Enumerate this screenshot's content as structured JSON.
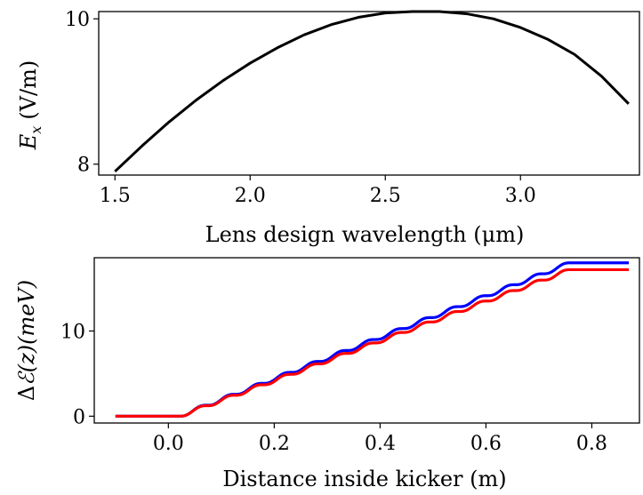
{
  "chart_data": [
    {
      "type": "line",
      "xlabel": "Lens design wavelength (μm)",
      "ylabel": "E_x (V/m)",
      "ylabel_parts": {
        "var": "E",
        "sub": "x",
        "unit": "(V/m)"
      },
      "xlim": [
        1.44,
        3.44
      ],
      "ylim": [
        7.85,
        10.1
      ],
      "xticks": [
        1.5,
        2.0,
        2.5,
        3.0
      ],
      "xtick_labels": [
        "1.5",
        "2.0",
        "2.5",
        "3.0"
      ],
      "yticks": [
        8,
        10
      ],
      "ytick_labels": [
        "8",
        "10"
      ],
      "grid": false,
      "series": [
        {
          "color": "#000000",
          "x": [
            1.5,
            1.6,
            1.7,
            1.8,
            1.9,
            2.0,
            2.1,
            2.2,
            2.3,
            2.4,
            2.5,
            2.6,
            2.7,
            2.8,
            2.9,
            3.0,
            3.1,
            3.2,
            3.3,
            3.4
          ],
          "y": [
            7.9,
            8.25,
            8.58,
            8.88,
            9.15,
            9.39,
            9.6,
            9.78,
            9.92,
            10.02,
            10.08,
            10.1,
            10.1,
            10.07,
            10.0,
            9.88,
            9.72,
            9.51,
            9.21,
            8.83
          ]
        }
      ]
    },
    {
      "type": "line",
      "xlabel": "Distance inside kicker (m)",
      "ylabel": "Δℰ(z)(meV)",
      "ylabel_parts": {
        "delta": "Δ",
        "var": "ℰ",
        "arg": "(z)",
        "unit": "(meV)"
      },
      "xlim": [
        -0.14,
        0.89
      ],
      "ylim": [
        -0.8,
        18.6
      ],
      "xticks": [
        0.0,
        0.2,
        0.4,
        0.6,
        0.8
      ],
      "xtick_labels": [
        "0.0",
        "0.2",
        "0.4",
        "0.6",
        "0.8"
      ],
      "yticks": [
        0,
        10
      ],
      "ytick_labels": [
        "0",
        "10"
      ],
      "grid": false,
      "series": [
        {
          "color": "#0000ff",
          "x_start": -0.1,
          "x_ramp_start": 0.02,
          "x_ramp_end": 0.76,
          "x_end": 0.87,
          "y_final": 18.0,
          "steps": 14
        },
        {
          "color": "#ff0000",
          "x_start": -0.1,
          "x_ramp_start": 0.02,
          "x_ramp_end": 0.76,
          "x_end": 0.87,
          "y_final": 17.2,
          "steps": 14
        }
      ]
    }
  ]
}
